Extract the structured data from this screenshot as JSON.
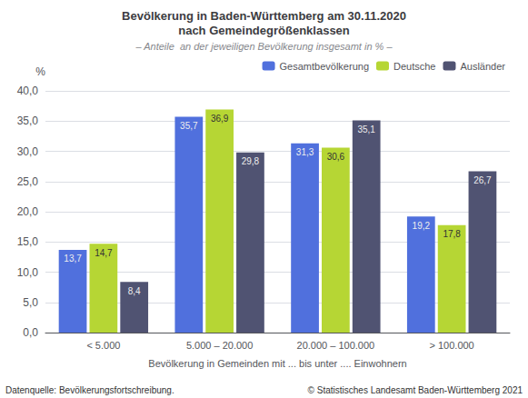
{
  "chart_data": {
    "type": "bar",
    "title": "Bevölkerung in Baden-Württemberg am 30.11.2020\nnach Gemeindegrößenklassen",
    "subtitle": "– Anteile  an der jeweiligen Bevölkerung insgesamt in % –",
    "xlabel": "Bevölkerung in Gemeinden mit ... bis unter .... Einwohnern",
    "ylabel": "%",
    "categories": [
      "< 5.000",
      "5.000 – 20.000",
      "20.000 – 100.000",
      "> 100.000"
    ],
    "series": [
      {
        "name": "Gesamtbevölkerung",
        "values": [
          13.7,
          35.7,
          31.3,
          19.2
        ],
        "value_labels": [
          "13,7",
          "35,7",
          "31,3",
          "19,2"
        ]
      },
      {
        "name": "Deutsche",
        "values": [
          14.7,
          36.9,
          30.6,
          17.8
        ],
        "value_labels": [
          "14,7",
          "36,9",
          "30,6",
          "17,8"
        ]
      },
      {
        "name": "Ausländer",
        "values": [
          8.4,
          29.8,
          35.1,
          26.7
        ],
        "value_labels": [
          "8,4",
          "29,8",
          "35,1",
          "26,7"
        ]
      }
    ],
    "ylim": [
      0,
      40
    ],
    "yticks": [
      {
        "value": 0,
        "label": "0,0"
      },
      {
        "value": 5,
        "label": "5,0"
      },
      {
        "value": 10,
        "label": "10,0"
      },
      {
        "value": 15,
        "label": "15,0"
      },
      {
        "value": 20,
        "label": "20,0"
      },
      {
        "value": 25,
        "label": "25,0"
      },
      {
        "value": 30,
        "label": "30,0"
      },
      {
        "value": 35,
        "label": "35,0"
      },
      {
        "value": 40,
        "label": "40,0"
      }
    ],
    "grid": true,
    "legend": "upper right",
    "data_labels": true,
    "annotations": [
      "Datenquelle: Bevölkerungsfortschreibung.",
      "© Statistisches Landesamt Baden-Württemberg 2021"
    ]
  }
}
